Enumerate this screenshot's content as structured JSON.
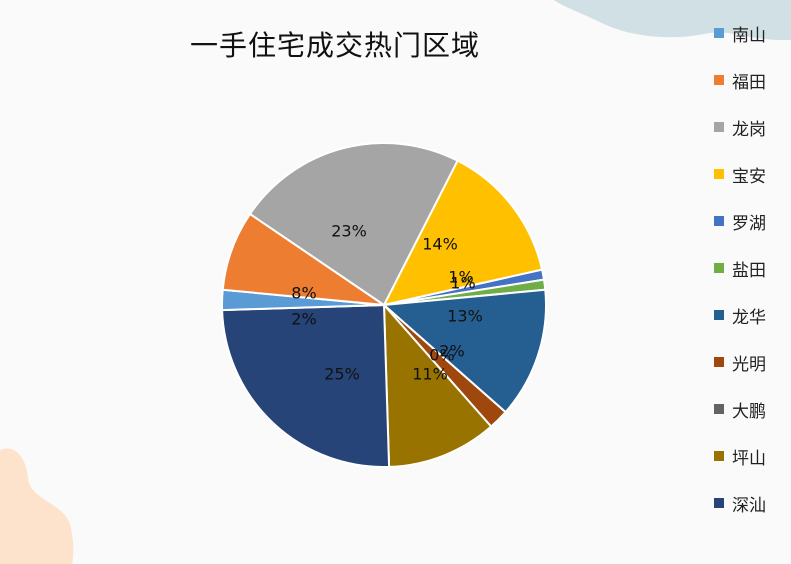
{
  "background": "#fafafa",
  "decoration_colors": {
    "top_blob": "#d0e0e4",
    "bottom_blob": "#fde3cc"
  },
  "chart_data": {
    "type": "pie",
    "title": "一手住宅成交热门区域",
    "legend_position": "right",
    "start_angle_deg": -63,
    "slices": [
      {
        "name": "宝安",
        "value": 14,
        "label": "14%",
        "color": "#ffc000"
      },
      {
        "name": "罗湖",
        "value": 1,
        "label": "1%",
        "color": "#4472c4"
      },
      {
        "name": "盐田",
        "value": 1,
        "label": "1%",
        "color": "#70ad47"
      },
      {
        "name": "龙华",
        "value": 13,
        "label": "13%",
        "color": "#255e91"
      },
      {
        "name": "光明",
        "value": 2,
        "label": "2%",
        "color": "#9e480e"
      },
      {
        "name": "大鹏",
        "value": 0,
        "label": "0%",
        "color": "#636363"
      },
      {
        "name": "坪山",
        "value": 11,
        "label": "11%",
        "color": "#997300"
      },
      {
        "name": "深汕",
        "value": 25,
        "label": "25%",
        "color": "#264478"
      },
      {
        "name": "南山",
        "value": 2,
        "label": "2%",
        "color": "#5b9bd5"
      },
      {
        "name": "福田",
        "value": 8,
        "label": "8%",
        "color": "#ed7d31"
      },
      {
        "name": "龙岗",
        "value": 23,
        "label": "23%",
        "color": "#a5a5a5"
      }
    ],
    "legend": [
      "南山",
      "福田",
      "龙岗",
      "宝安",
      "罗湖",
      "盐田",
      "龙华",
      "光明",
      "大鹏",
      "坪山",
      "深汕"
    ]
  }
}
